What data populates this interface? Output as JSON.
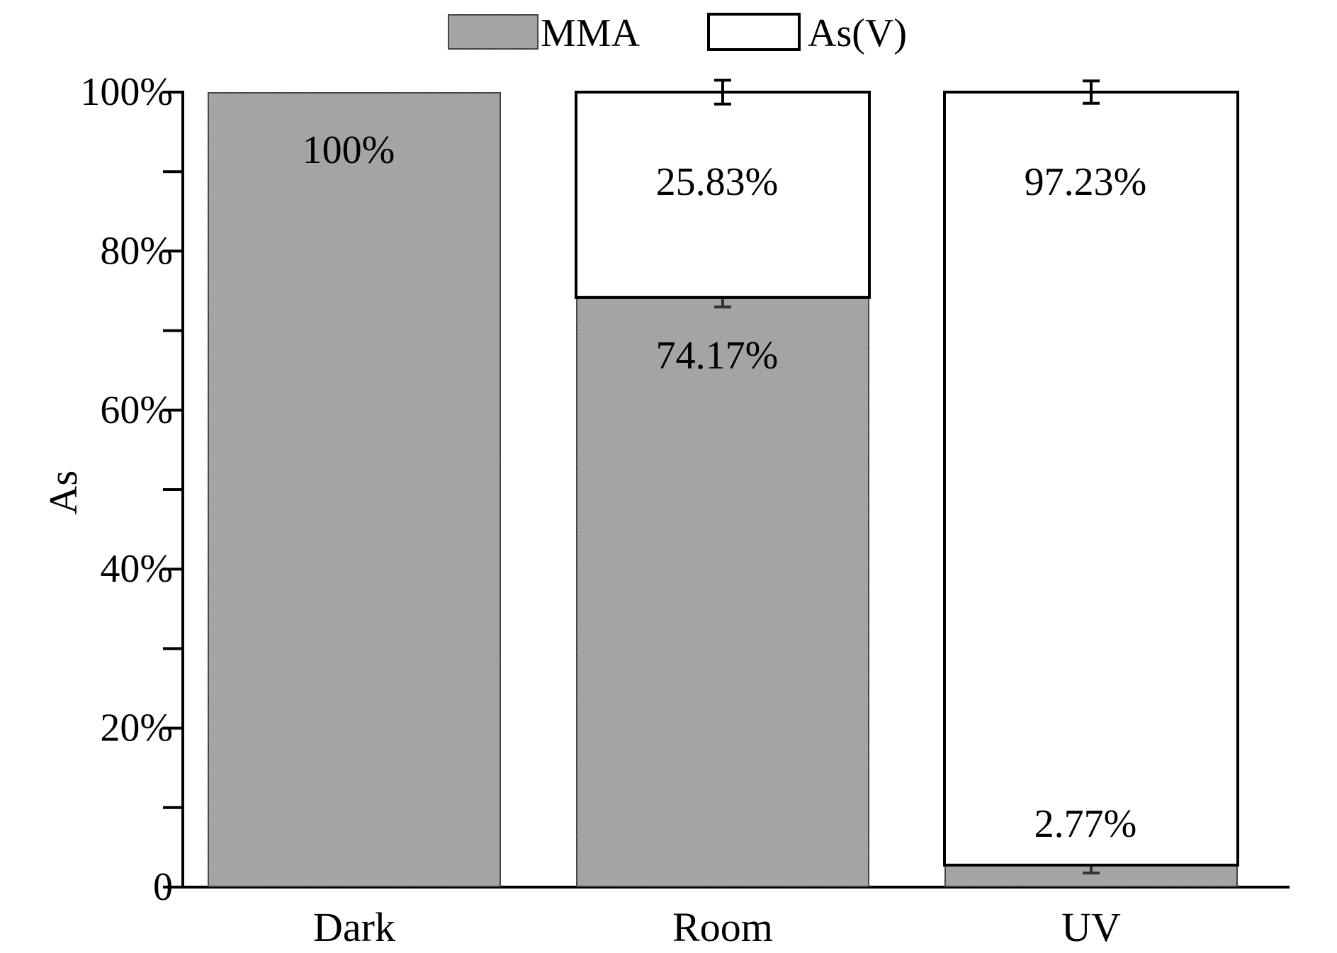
{
  "chart_data": {
    "type": "bar",
    "stacked": true,
    "categories": [
      "Dark",
      "Room",
      "UV"
    ],
    "series": [
      {
        "name": "MMA",
        "values": [
          100,
          74.17,
          2.77
        ],
        "labels": [
          "100%",
          "74.17%",
          "2.77%"
        ],
        "color": "#a6a6a6",
        "error": [
          0,
          1.2,
          1.0
        ]
      },
      {
        "name": "As(V)",
        "values": [
          0,
          25.83,
          97.23
        ],
        "labels": [
          "",
          "25.83%",
          "97.23%"
        ],
        "color": "#ffffff",
        "error": [
          0,
          1.5,
          1.4
        ]
      }
    ],
    "ylabel": "As",
    "xlabel": "",
    "ylim": [
      0,
      100
    ],
    "yticks": [
      0,
      20,
      40,
      60,
      80,
      100
    ],
    "ytick_labels": [
      "0",
      "20%",
      "40%",
      "60%",
      "80%",
      "100%"
    ],
    "grid": false,
    "legend_position": "top-center"
  }
}
